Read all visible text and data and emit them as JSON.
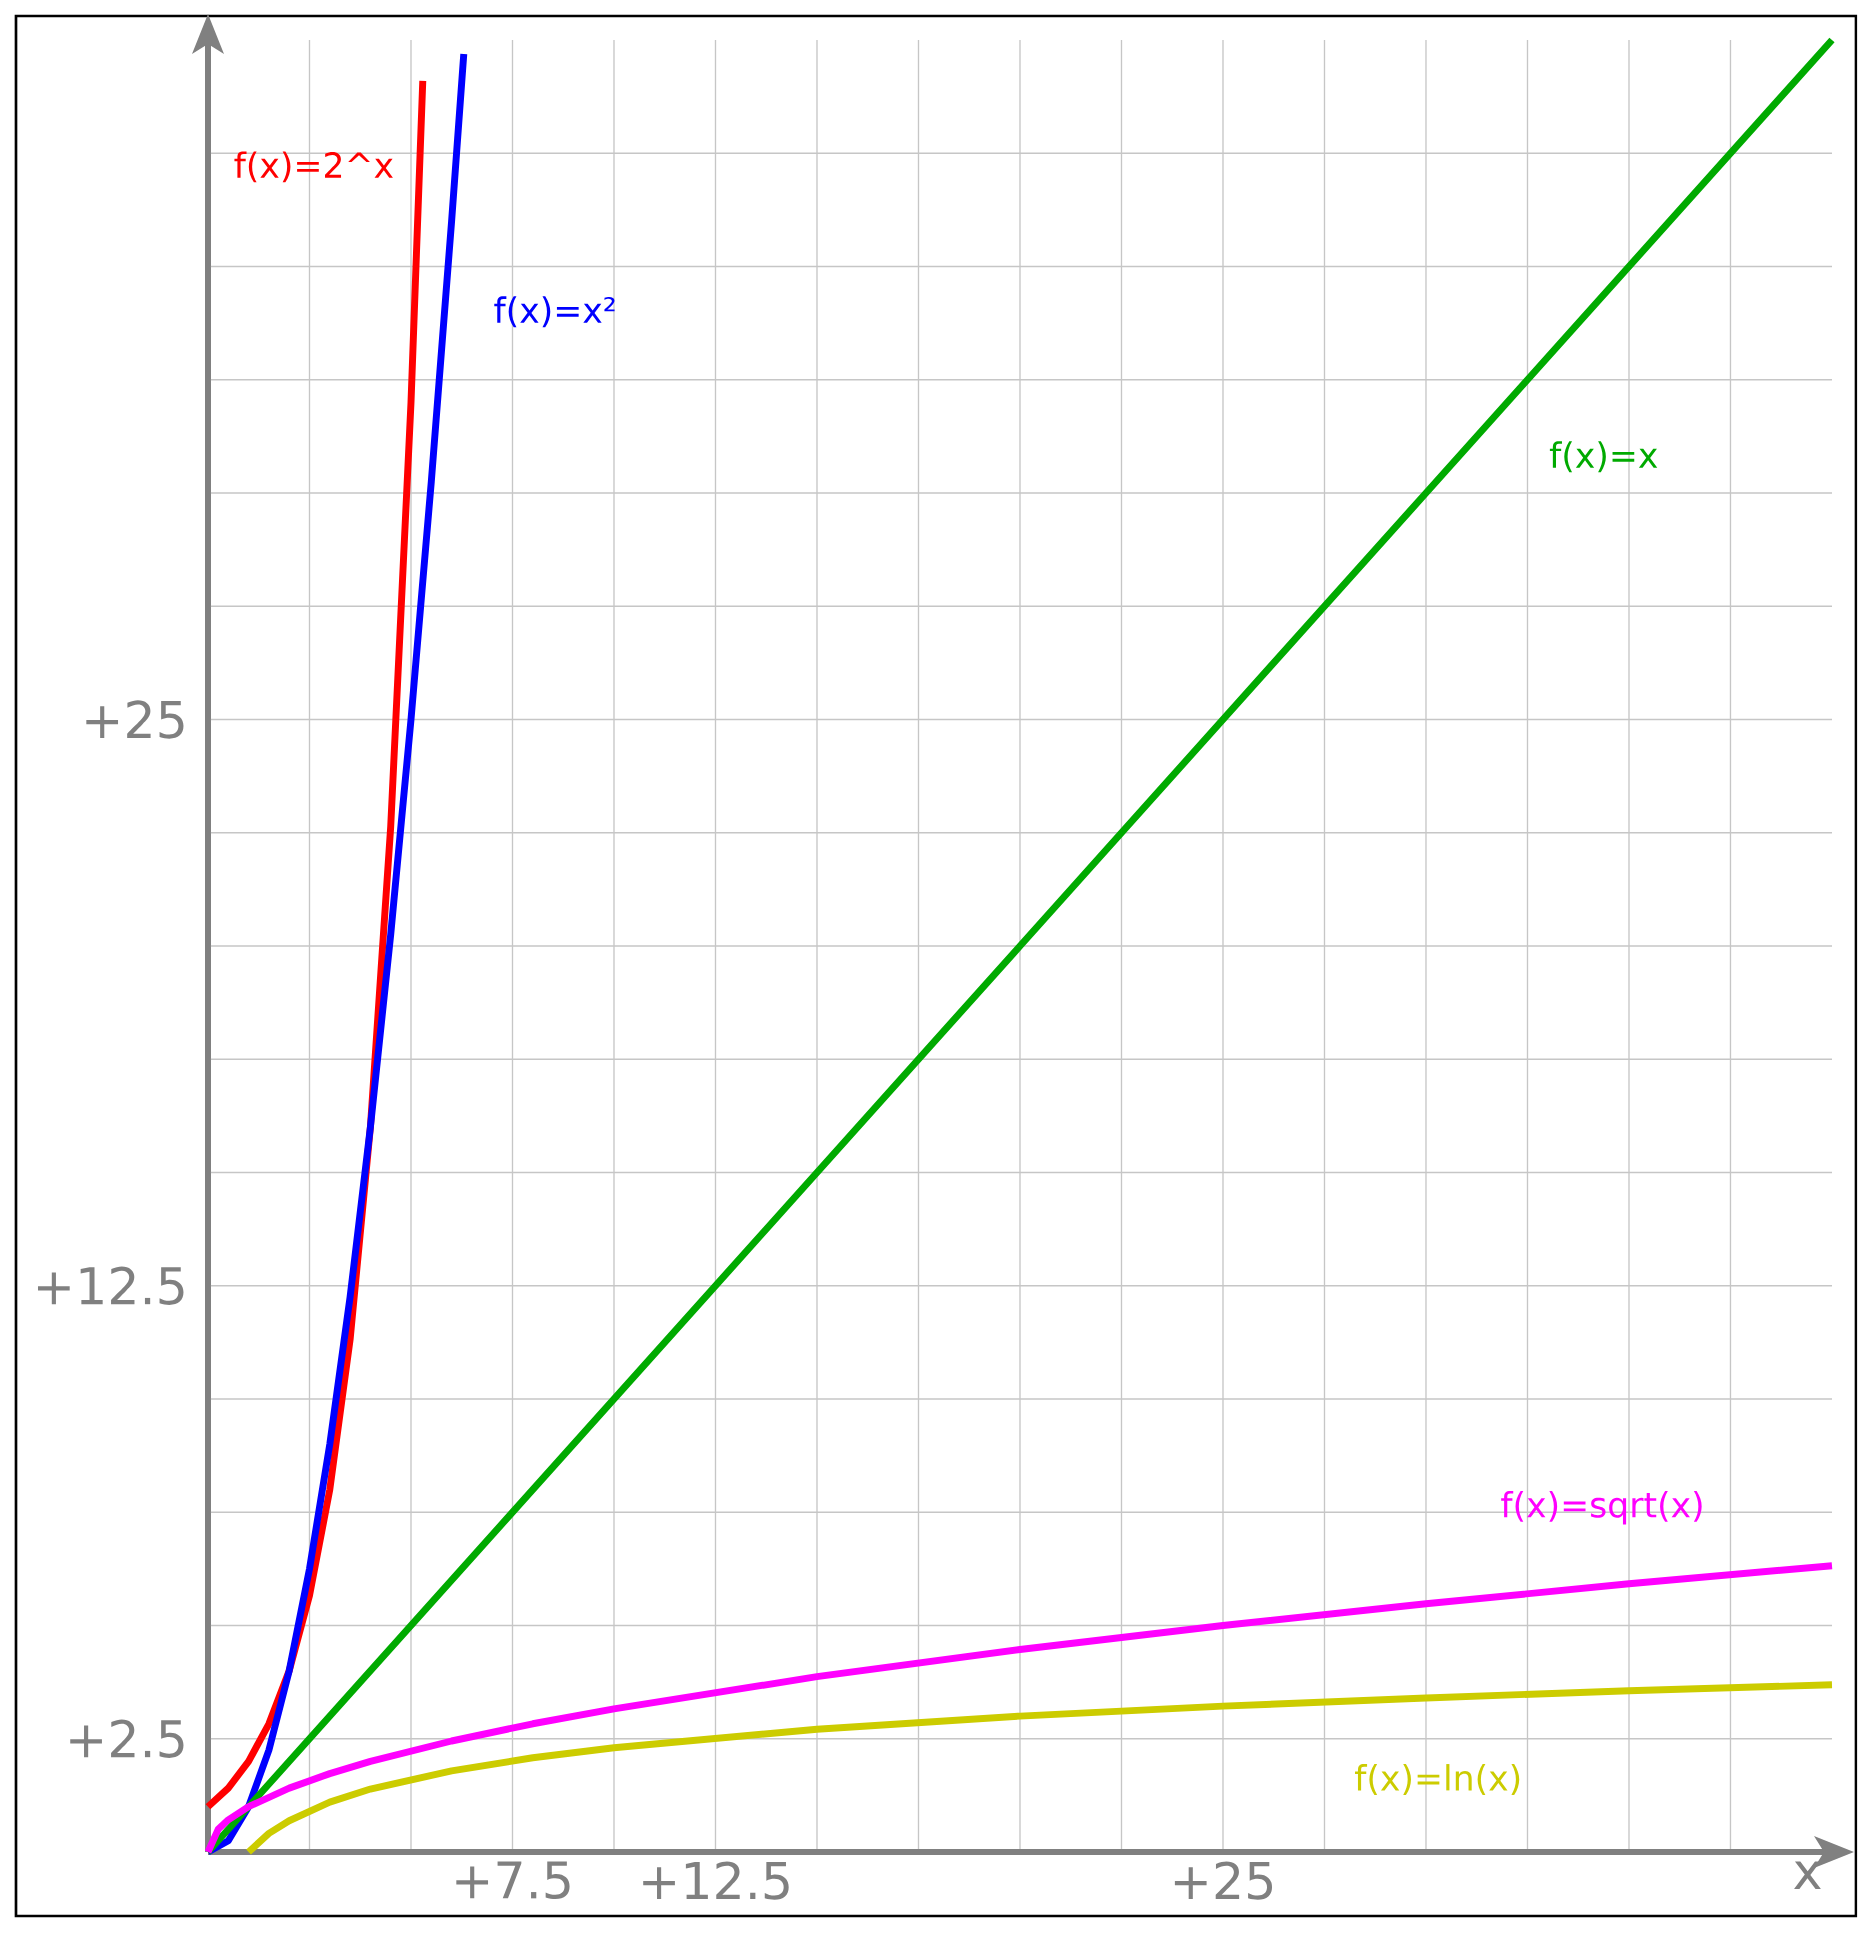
{
  "chart_data": {
    "type": "line",
    "xlabel": "x",
    "xlim": [
      0,
      40
    ],
    "ylim": [
      0,
      40
    ],
    "xticks": [
      {
        "value": 2.5,
        "label": null
      },
      {
        "value": 5,
        "label": null
      },
      {
        "value": 7.5,
        "label": "+7.5"
      },
      {
        "value": 10,
        "label": null
      },
      {
        "value": 12.5,
        "label": "+12.5"
      },
      {
        "value": 15,
        "label": null
      },
      {
        "value": 17.5,
        "label": null
      },
      {
        "value": 20,
        "label": null
      },
      {
        "value": 22.5,
        "label": null
      },
      {
        "value": 25,
        "label": "+25"
      },
      {
        "value": 27.5,
        "label": null
      },
      {
        "value": 30,
        "label": null
      },
      {
        "value": 32.5,
        "label": null
      },
      {
        "value": 35,
        "label": null
      },
      {
        "value": 37.5,
        "label": null
      }
    ],
    "yticks": [
      {
        "value": 2.5,
        "label": "+2.5"
      },
      {
        "value": 5,
        "label": null
      },
      {
        "value": 7.5,
        "label": null
      },
      {
        "value": 10,
        "label": null
      },
      {
        "value": 12.5,
        "label": "+12.5"
      },
      {
        "value": 15,
        "label": null
      },
      {
        "value": 17.5,
        "label": null
      },
      {
        "value": 20,
        "label": null
      },
      {
        "value": 22.5,
        "label": null
      },
      {
        "value": 25,
        "label": "+25"
      },
      {
        "value": 27.5,
        "label": null
      },
      {
        "value": 30,
        "label": null
      },
      {
        "value": 32.5,
        "label": null
      },
      {
        "value": 35,
        "label": null
      },
      {
        "value": 37.5,
        "label": null
      }
    ],
    "grid": true,
    "series": [
      {
        "name": "f(x)=2^x",
        "color": "#ff0000",
        "x": [
          0,
          0.5,
          1,
          1.5,
          2,
          2.5,
          3,
          3.5,
          4,
          4.5,
          5,
          5.29
        ],
        "values": [
          1,
          1.41,
          2,
          2.83,
          4,
          5.66,
          8,
          11.31,
          16,
          22.63,
          32,
          39.1
        ]
      },
      {
        "name": "f(x)=x²",
        "color": "#0000ff",
        "x": [
          0,
          0.5,
          1,
          1.5,
          2,
          2.5,
          3,
          3.5,
          4,
          4.5,
          5,
          5.5,
          6,
          6.3
        ],
        "values": [
          0,
          0.25,
          1,
          2.25,
          4,
          6.25,
          9,
          12.25,
          16,
          20.25,
          25,
          30.25,
          36,
          39.69
        ]
      },
      {
        "name": "f(x)=x",
        "color": "#00aa00",
        "x": [
          0,
          10,
          20,
          30,
          40
        ],
        "values": [
          0,
          10,
          20,
          30,
          40
        ]
      },
      {
        "name": "f(x)=sqrt(x)",
        "color": "#ff00ff",
        "x": [
          0,
          0.25,
          0.5,
          1,
          2,
          3,
          4,
          6,
          8,
          10,
          15,
          20,
          25,
          30,
          35,
          40
        ],
        "values": [
          0,
          0.5,
          0.71,
          1,
          1.41,
          1.73,
          2,
          2.45,
          2.83,
          3.16,
          3.87,
          4.47,
          5,
          5.48,
          5.92,
          6.32
        ]
      },
      {
        "name": "f(x)=ln(x)",
        "color": "#cccc00",
        "x": [
          1,
          1.5,
          2,
          3,
          4,
          6,
          8,
          10,
          15,
          20,
          25,
          30,
          35,
          40
        ],
        "values": [
          0,
          0.41,
          0.69,
          1.1,
          1.39,
          1.79,
          2.08,
          2.3,
          2.71,
          3.0,
          3.22,
          3.4,
          3.56,
          3.69
        ]
      }
    ]
  }
}
